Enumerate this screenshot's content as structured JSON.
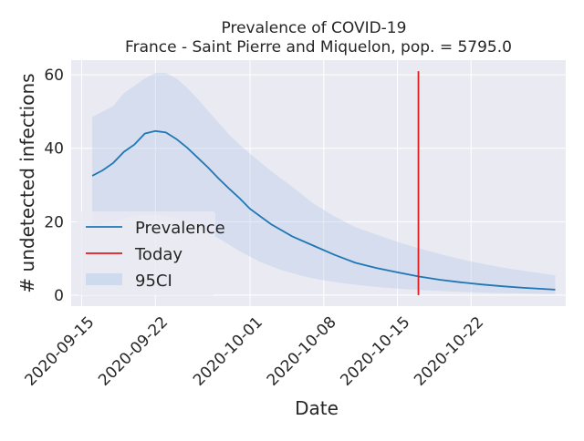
{
  "chart_data": {
    "type": "line",
    "title_line1": "Prevalence of COVID-19",
    "title_line2": "France - Saint Pierre and Miquelon, pop. = 5795.0",
    "xlabel": "Date",
    "ylabel": "# undetected infections",
    "xlim": [
      "2020-09-14",
      "2020-10-31"
    ],
    "ylim": [
      -3,
      64
    ],
    "yticks": [
      0,
      20,
      40,
      60
    ],
    "xticks": [
      "2020-09-15",
      "2020-09-22",
      "2020-10-01",
      "2020-10-08",
      "2020-10-15",
      "2020-10-22"
    ],
    "grid": true,
    "legend_position": "center-left",
    "legend": [
      {
        "label": "Prevalence",
        "kind": "line",
        "color": "#1f77b4"
      },
      {
        "label": "Today",
        "kind": "line",
        "color": "#e41a1c"
      },
      {
        "label": "95CI",
        "kind": "patch",
        "color": "#aec7e8"
      }
    ],
    "today": {
      "date": "2020-10-17",
      "ymax": 61
    },
    "series": [
      {
        "name": "Prevalence",
        "color": "#1f77b4",
        "points": [
          [
            "2020-09-16",
            32.5
          ],
          [
            "2020-09-17",
            34.0
          ],
          [
            "2020-09-18",
            36.0
          ],
          [
            "2020-09-19",
            39.0
          ],
          [
            "2020-09-20",
            41.0
          ],
          [
            "2020-09-21",
            44.0
          ],
          [
            "2020-09-22",
            44.7
          ],
          [
            "2020-09-23",
            44.3
          ],
          [
            "2020-09-24",
            42.5
          ],
          [
            "2020-09-25",
            40.2
          ],
          [
            "2020-09-26",
            37.5
          ],
          [
            "2020-09-27",
            34.8
          ],
          [
            "2020-09-28",
            31.8
          ],
          [
            "2020-09-29",
            29.0
          ],
          [
            "2020-09-30",
            26.4
          ],
          [
            "2020-10-01",
            23.5
          ],
          [
            "2020-10-03",
            19.3
          ],
          [
            "2020-10-05",
            16.0
          ],
          [
            "2020-10-07",
            13.5
          ],
          [
            "2020-10-09",
            11.0
          ],
          [
            "2020-10-11",
            8.8
          ],
          [
            "2020-10-13",
            7.4
          ],
          [
            "2020-10-15",
            6.2
          ],
          [
            "2020-10-17",
            5.1
          ],
          [
            "2020-10-19",
            4.2
          ],
          [
            "2020-10-21",
            3.5
          ],
          [
            "2020-10-23",
            2.9
          ],
          [
            "2020-10-25",
            2.4
          ],
          [
            "2020-10-27",
            2.0
          ],
          [
            "2020-10-30",
            1.5
          ]
        ]
      }
    ],
    "band": {
      "name": "95CI",
      "color": "#aec7e8",
      "upper": [
        [
          "2020-09-16",
          48.5
        ],
        [
          "2020-09-18",
          51.5
        ],
        [
          "2020-09-19",
          55.0
        ],
        [
          "2020-09-20",
          57.0
        ],
        [
          "2020-09-21",
          59.0
        ],
        [
          "2020-09-22",
          60.5
        ],
        [
          "2020-09-23",
          60.5
        ],
        [
          "2020-09-24",
          59.0
        ],
        [
          "2020-09-25",
          56.5
        ],
        [
          "2020-09-26",
          53.5
        ],
        [
          "2020-09-27",
          50.2
        ],
        [
          "2020-09-28",
          47.0
        ],
        [
          "2020-09-29",
          43.7
        ],
        [
          "2020-09-30",
          41.0
        ],
        [
          "2020-10-01",
          38.5
        ],
        [
          "2020-10-03",
          33.8
        ],
        [
          "2020-10-05",
          29.5
        ],
        [
          "2020-10-07",
          25.0
        ],
        [
          "2020-10-09",
          21.5
        ],
        [
          "2020-10-11",
          18.5
        ],
        [
          "2020-10-13",
          16.5
        ],
        [
          "2020-10-15",
          14.5
        ],
        [
          "2020-10-17",
          12.8
        ],
        [
          "2020-10-19",
          11.2
        ],
        [
          "2020-10-21",
          9.8
        ],
        [
          "2020-10-23",
          8.6
        ],
        [
          "2020-10-25",
          7.5
        ],
        [
          "2020-10-27",
          6.6
        ],
        [
          "2020-10-30",
          5.4
        ]
      ],
      "lower": [
        [
          "2020-09-16",
          19.0
        ],
        [
          "2020-09-18",
          20.0
        ],
        [
          "2020-09-20",
          21.5
        ],
        [
          "2020-09-22",
          22.0
        ],
        [
          "2020-09-24",
          21.0
        ],
        [
          "2020-09-26",
          18.5
        ],
        [
          "2020-09-28",
          15.5
        ],
        [
          "2020-09-30",
          12.0
        ],
        [
          "2020-10-02",
          9.0
        ],
        [
          "2020-10-04",
          6.8
        ],
        [
          "2020-10-06",
          5.2
        ],
        [
          "2020-10-08",
          4.0
        ],
        [
          "2020-10-10",
          3.2
        ],
        [
          "2020-10-12",
          2.5
        ],
        [
          "2020-10-14",
          2.0
        ],
        [
          "2020-10-16",
          1.6
        ],
        [
          "2020-10-18",
          1.3
        ],
        [
          "2020-10-20",
          1.0
        ],
        [
          "2020-10-22",
          0.8
        ],
        [
          "2020-10-24",
          0.6
        ],
        [
          "2020-10-26",
          0.5
        ],
        [
          "2020-10-28",
          0.4
        ],
        [
          "2020-10-30",
          0.3
        ]
      ]
    }
  }
}
